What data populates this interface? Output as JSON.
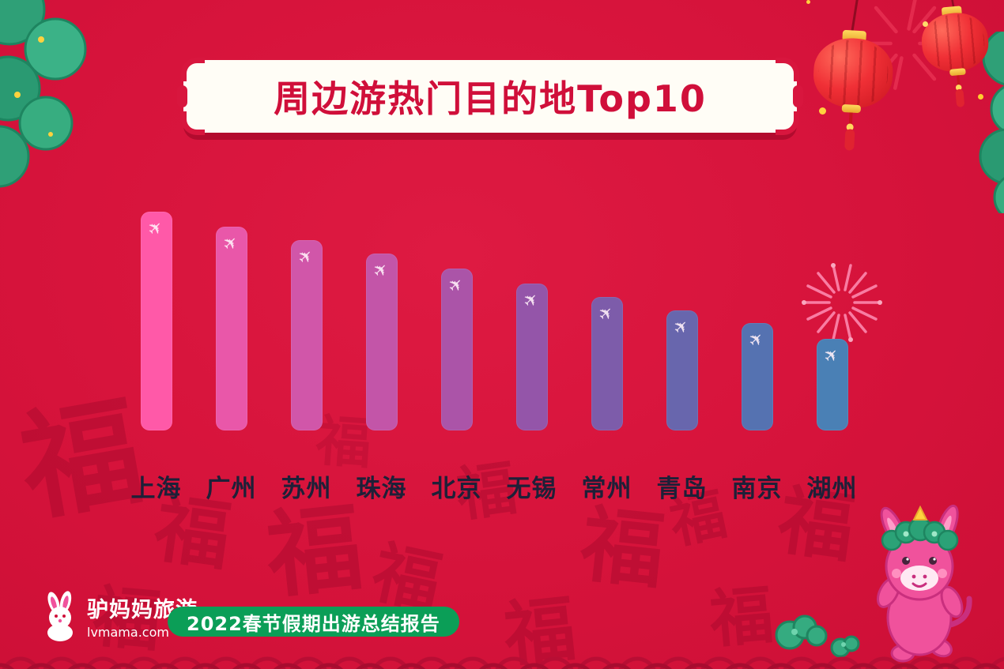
{
  "header": {
    "title": "周边游热门目的地Top10"
  },
  "footer": {
    "logo_name": "驴妈妈旅游",
    "logo_domain": "lvmama.com",
    "report_badge": "2022春节假期出游总结报告"
  },
  "icons": {
    "plane": "✈"
  },
  "decor": {
    "fu": "福"
  },
  "colors": {
    "background": "#d6133b",
    "title_text": "#d00f3a",
    "label_text": "#1e2038",
    "badge_green": "#0b9e57",
    "banner_bg": "#fffdf6",
    "lantern_red": "#e8262b",
    "pine_green": "#2fa077"
  },
  "chart_data": {
    "type": "bar",
    "title": "周边游热门目的地Top10",
    "categories": [
      "上海",
      "广州",
      "苏州",
      "珠海",
      "北京",
      "无锡",
      "常州",
      "青岛",
      "南京",
      "湖州"
    ],
    "values": [
      100,
      93,
      87,
      81,
      74,
      67,
      61,
      55,
      49,
      42
    ],
    "series_note": "ranking bars, relative heights; no numeric axis shown in figure",
    "bar_colors": [
      "#ff59a8",
      "#e957a9",
      "#d156a9",
      "#c355a8",
      "#ab54a8",
      "#9455a9",
      "#7d5caa",
      "#6866ad",
      "#5572b1",
      "#4a80b5"
    ],
    "xlabel": "",
    "ylabel": "",
    "grid": false,
    "legend": false
  }
}
